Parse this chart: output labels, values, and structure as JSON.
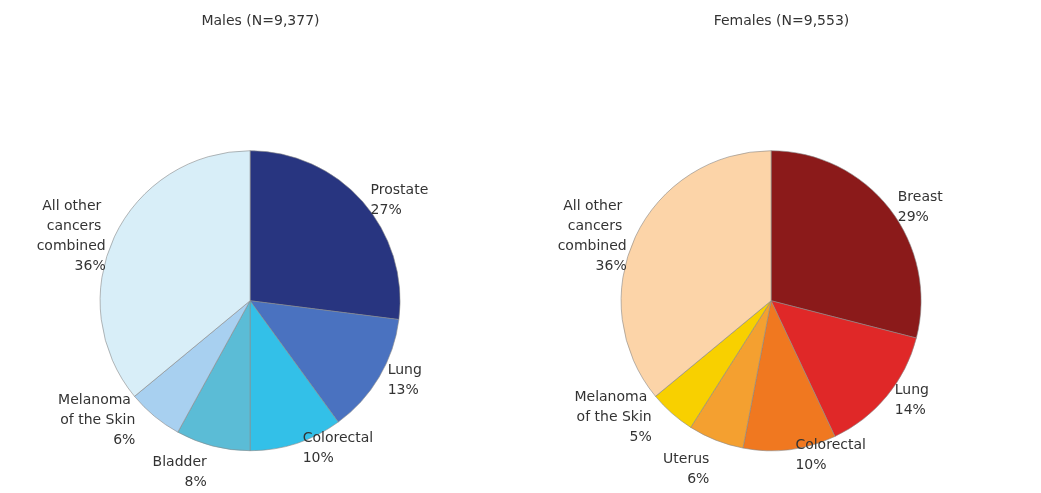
{
  "chart_data": [
    {
      "type": "pie",
      "title": "Males (N=9,377)",
      "categories": [
        "Prostate",
        "Lung",
        "Colorectal",
        "Bladder",
        "Melanoma of the Skin",
        "All other cancers combined"
      ],
      "values": [
        27,
        13,
        10,
        8,
        6,
        36
      ],
      "value_labels": [
        "27%",
        "13%",
        "10%",
        "8%",
        "6%",
        "36%"
      ],
      "colors": [
        "#283580",
        "#4a72c0",
        "#33c0e8",
        "#5bbcd6",
        "#a8d0f0",
        "#d8eef8"
      ],
      "legend": false
    },
    {
      "type": "pie",
      "title": "Females (N=9,553)",
      "categories": [
        "Breast",
        "Lung",
        "Colorectal",
        "Uterus",
        "Melanoma of the Skin",
        "All other cancers combined"
      ],
      "values": [
        29,
        14,
        10,
        6,
        5,
        36
      ],
      "value_labels": [
        "29%",
        "14%",
        "10%",
        "6%",
        "5%",
        "36%"
      ],
      "colors": [
        "#8b1a1a",
        "#e02828",
        "#f07820",
        "#f4a030",
        "#f8d000",
        "#fcd4a8"
      ],
      "legend": false
    }
  ]
}
